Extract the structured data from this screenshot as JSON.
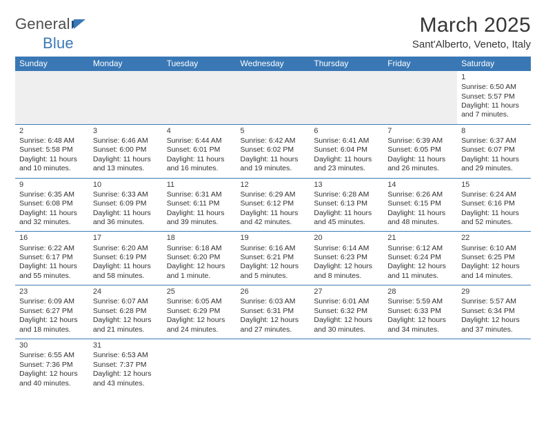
{
  "logo": {
    "general": "General",
    "blue": "Blue"
  },
  "title": "March 2025",
  "location": "Sant'Alberto, Veneto, Italy",
  "colors": {
    "header_bg": "#3a78b5",
    "header_text": "#ffffff",
    "divider": "#3a78b5",
    "body_text": "#303030",
    "empty_bg": "#efefef",
    "page_bg": "#ffffff"
  },
  "typography": {
    "title_fontsize": 30,
    "location_fontsize": 15,
    "weekday_fontsize": 12,
    "cell_fontsize": 10.5,
    "logo_fontsize": 22
  },
  "weekdays": [
    "Sunday",
    "Monday",
    "Tuesday",
    "Wednesday",
    "Thursday",
    "Friday",
    "Saturday"
  ],
  "weeks": [
    [
      null,
      null,
      null,
      null,
      null,
      null,
      {
        "n": "1",
        "sunrise": "Sunrise: 6:50 AM",
        "sunset": "Sunset: 5:57 PM",
        "day1": "Daylight: 11 hours",
        "day2": "and 7 minutes."
      }
    ],
    [
      {
        "n": "2",
        "sunrise": "Sunrise: 6:48 AM",
        "sunset": "Sunset: 5:58 PM",
        "day1": "Daylight: 11 hours",
        "day2": "and 10 minutes."
      },
      {
        "n": "3",
        "sunrise": "Sunrise: 6:46 AM",
        "sunset": "Sunset: 6:00 PM",
        "day1": "Daylight: 11 hours",
        "day2": "and 13 minutes."
      },
      {
        "n": "4",
        "sunrise": "Sunrise: 6:44 AM",
        "sunset": "Sunset: 6:01 PM",
        "day1": "Daylight: 11 hours",
        "day2": "and 16 minutes."
      },
      {
        "n": "5",
        "sunrise": "Sunrise: 6:42 AM",
        "sunset": "Sunset: 6:02 PM",
        "day1": "Daylight: 11 hours",
        "day2": "and 19 minutes."
      },
      {
        "n": "6",
        "sunrise": "Sunrise: 6:41 AM",
        "sunset": "Sunset: 6:04 PM",
        "day1": "Daylight: 11 hours",
        "day2": "and 23 minutes."
      },
      {
        "n": "7",
        "sunrise": "Sunrise: 6:39 AM",
        "sunset": "Sunset: 6:05 PM",
        "day1": "Daylight: 11 hours",
        "day2": "and 26 minutes."
      },
      {
        "n": "8",
        "sunrise": "Sunrise: 6:37 AM",
        "sunset": "Sunset: 6:07 PM",
        "day1": "Daylight: 11 hours",
        "day2": "and 29 minutes."
      }
    ],
    [
      {
        "n": "9",
        "sunrise": "Sunrise: 6:35 AM",
        "sunset": "Sunset: 6:08 PM",
        "day1": "Daylight: 11 hours",
        "day2": "and 32 minutes."
      },
      {
        "n": "10",
        "sunrise": "Sunrise: 6:33 AM",
        "sunset": "Sunset: 6:09 PM",
        "day1": "Daylight: 11 hours",
        "day2": "and 36 minutes."
      },
      {
        "n": "11",
        "sunrise": "Sunrise: 6:31 AM",
        "sunset": "Sunset: 6:11 PM",
        "day1": "Daylight: 11 hours",
        "day2": "and 39 minutes."
      },
      {
        "n": "12",
        "sunrise": "Sunrise: 6:29 AM",
        "sunset": "Sunset: 6:12 PM",
        "day1": "Daylight: 11 hours",
        "day2": "and 42 minutes."
      },
      {
        "n": "13",
        "sunrise": "Sunrise: 6:28 AM",
        "sunset": "Sunset: 6:13 PM",
        "day1": "Daylight: 11 hours",
        "day2": "and 45 minutes."
      },
      {
        "n": "14",
        "sunrise": "Sunrise: 6:26 AM",
        "sunset": "Sunset: 6:15 PM",
        "day1": "Daylight: 11 hours",
        "day2": "and 48 minutes."
      },
      {
        "n": "15",
        "sunrise": "Sunrise: 6:24 AM",
        "sunset": "Sunset: 6:16 PM",
        "day1": "Daylight: 11 hours",
        "day2": "and 52 minutes."
      }
    ],
    [
      {
        "n": "16",
        "sunrise": "Sunrise: 6:22 AM",
        "sunset": "Sunset: 6:17 PM",
        "day1": "Daylight: 11 hours",
        "day2": "and 55 minutes."
      },
      {
        "n": "17",
        "sunrise": "Sunrise: 6:20 AM",
        "sunset": "Sunset: 6:19 PM",
        "day1": "Daylight: 11 hours",
        "day2": "and 58 minutes."
      },
      {
        "n": "18",
        "sunrise": "Sunrise: 6:18 AM",
        "sunset": "Sunset: 6:20 PM",
        "day1": "Daylight: 12 hours",
        "day2": "and 1 minute."
      },
      {
        "n": "19",
        "sunrise": "Sunrise: 6:16 AM",
        "sunset": "Sunset: 6:21 PM",
        "day1": "Daylight: 12 hours",
        "day2": "and 5 minutes."
      },
      {
        "n": "20",
        "sunrise": "Sunrise: 6:14 AM",
        "sunset": "Sunset: 6:23 PM",
        "day1": "Daylight: 12 hours",
        "day2": "and 8 minutes."
      },
      {
        "n": "21",
        "sunrise": "Sunrise: 6:12 AM",
        "sunset": "Sunset: 6:24 PM",
        "day1": "Daylight: 12 hours",
        "day2": "and 11 minutes."
      },
      {
        "n": "22",
        "sunrise": "Sunrise: 6:10 AM",
        "sunset": "Sunset: 6:25 PM",
        "day1": "Daylight: 12 hours",
        "day2": "and 14 minutes."
      }
    ],
    [
      {
        "n": "23",
        "sunrise": "Sunrise: 6:09 AM",
        "sunset": "Sunset: 6:27 PM",
        "day1": "Daylight: 12 hours",
        "day2": "and 18 minutes."
      },
      {
        "n": "24",
        "sunrise": "Sunrise: 6:07 AM",
        "sunset": "Sunset: 6:28 PM",
        "day1": "Daylight: 12 hours",
        "day2": "and 21 minutes."
      },
      {
        "n": "25",
        "sunrise": "Sunrise: 6:05 AM",
        "sunset": "Sunset: 6:29 PM",
        "day1": "Daylight: 12 hours",
        "day2": "and 24 minutes."
      },
      {
        "n": "26",
        "sunrise": "Sunrise: 6:03 AM",
        "sunset": "Sunset: 6:31 PM",
        "day1": "Daylight: 12 hours",
        "day2": "and 27 minutes."
      },
      {
        "n": "27",
        "sunrise": "Sunrise: 6:01 AM",
        "sunset": "Sunset: 6:32 PM",
        "day1": "Daylight: 12 hours",
        "day2": "and 30 minutes."
      },
      {
        "n": "28",
        "sunrise": "Sunrise: 5:59 AM",
        "sunset": "Sunset: 6:33 PM",
        "day1": "Daylight: 12 hours",
        "day2": "and 34 minutes."
      },
      {
        "n": "29",
        "sunrise": "Sunrise: 5:57 AM",
        "sunset": "Sunset: 6:34 PM",
        "day1": "Daylight: 12 hours",
        "day2": "and 37 minutes."
      }
    ],
    [
      {
        "n": "30",
        "sunrise": "Sunrise: 6:55 AM",
        "sunset": "Sunset: 7:36 PM",
        "day1": "Daylight: 12 hours",
        "day2": "and 40 minutes."
      },
      {
        "n": "31",
        "sunrise": "Sunrise: 6:53 AM",
        "sunset": "Sunset: 7:37 PM",
        "day1": "Daylight: 12 hours",
        "day2": "and 43 minutes."
      },
      null,
      null,
      null,
      null,
      null
    ]
  ]
}
